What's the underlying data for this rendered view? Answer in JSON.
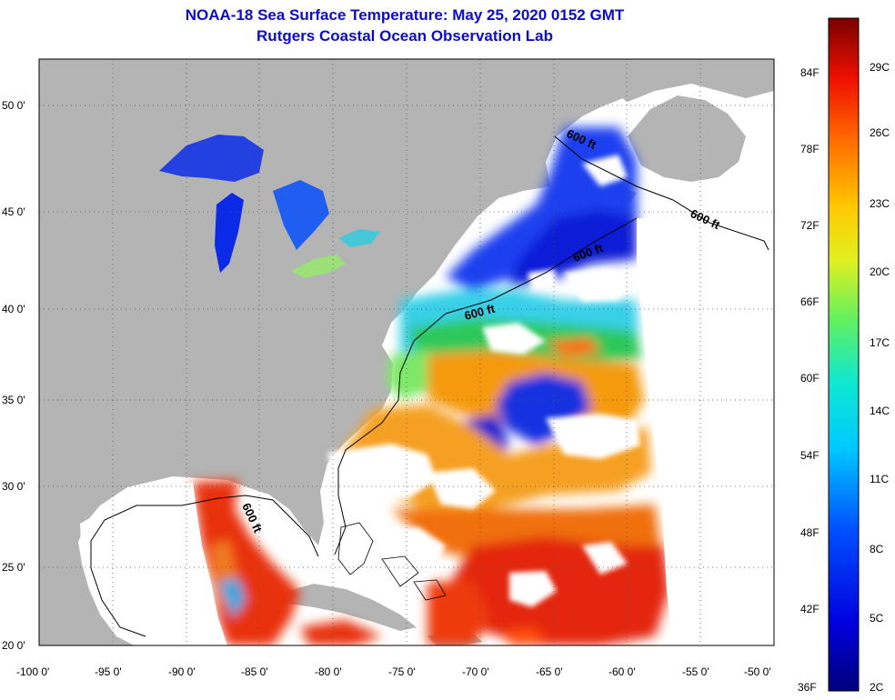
{
  "title": {
    "line1": "NOAA-18 Sea Surface Temperature:  May 25, 2020 0152 GMT",
    "line2": "Rutgers Coastal Ocean Observation Lab"
  },
  "axes": {
    "lon_ticks": [
      "-100 0'",
      "-95 0'",
      "-90 0'",
      "-85 0'",
      "-80 0'",
      "-75 0'",
      "-70 0'",
      "-65 0'",
      "-60 0'",
      "-55 0'",
      "-50 0'"
    ],
    "lat_ticks": [
      "50 0'",
      "45 0'",
      "40 0'",
      "35 0'",
      "30 0'",
      "25 0'",
      "20 0'"
    ]
  },
  "contours": {
    "label": "600 ft"
  },
  "colorbar": {
    "fahrenheit": [
      "84F",
      "78F",
      "72F",
      "66F",
      "60F",
      "54F",
      "48F",
      "42F",
      "36F"
    ],
    "celsius": [
      "29C",
      "26C",
      "23C",
      "20C",
      "17C",
      "14C",
      "11C",
      "8C",
      "5C",
      "2C"
    ]
  },
  "colors": {
    "land": "#b4b4b4",
    "cloud": "#ffffff",
    "title": "#0b0bcc"
  }
}
